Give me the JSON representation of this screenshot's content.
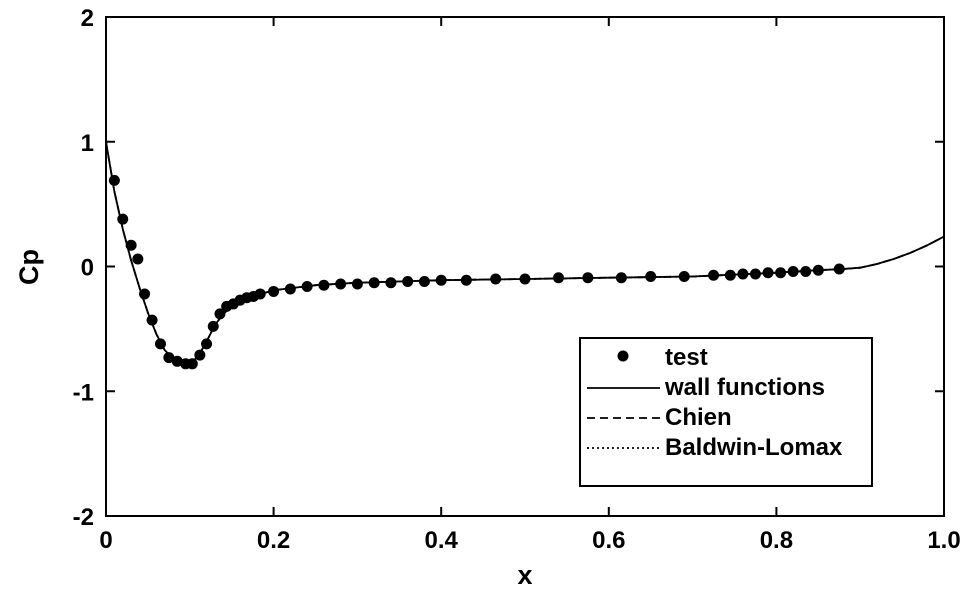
{
  "chart_data": {
    "type": "line",
    "title": "",
    "xlabel": "x",
    "ylabel": "Cp",
    "xlim": [
      0,
      1.0
    ],
    "ylim": [
      -2,
      2
    ],
    "x_ticks": [
      0,
      0.2,
      0.4,
      0.6,
      0.8,
      1.0
    ],
    "x_tick_labels": [
      "0",
      "0.2",
      "0.4",
      "0.6",
      "0.8",
      "1.0"
    ],
    "y_ticks": [
      -2,
      -1,
      0,
      1,
      2
    ],
    "y_tick_labels": [
      "-2",
      "-1",
      "0",
      "1",
      "2"
    ],
    "grid": false,
    "legend_position": "lower-right",
    "series": [
      {
        "name": "test",
        "style": "markers",
        "x": [
          0.01,
          0.02,
          0.03,
          0.038,
          0.046,
          0.055,
          0.065,
          0.075,
          0.085,
          0.095,
          0.103,
          0.112,
          0.12,
          0.128,
          0.136,
          0.144,
          0.152,
          0.16,
          0.168,
          0.176,
          0.184,
          0.2,
          0.22,
          0.24,
          0.26,
          0.28,
          0.3,
          0.32,
          0.34,
          0.36,
          0.38,
          0.4,
          0.43,
          0.465,
          0.5,
          0.54,
          0.575,
          0.615,
          0.65,
          0.69,
          0.725,
          0.745,
          0.76,
          0.775,
          0.79,
          0.805,
          0.82,
          0.835,
          0.85,
          0.875
        ],
        "y": [
          0.69,
          0.38,
          0.17,
          0.06,
          -0.22,
          -0.43,
          -0.62,
          -0.73,
          -0.76,
          -0.78,
          -0.78,
          -0.71,
          -0.62,
          -0.48,
          -0.38,
          -0.32,
          -0.3,
          -0.27,
          -0.25,
          -0.24,
          -0.22,
          -0.2,
          -0.18,
          -0.16,
          -0.15,
          -0.14,
          -0.14,
          -0.13,
          -0.13,
          -0.12,
          -0.12,
          -0.11,
          -0.11,
          -0.1,
          -0.1,
          -0.09,
          -0.09,
          -0.09,
          -0.08,
          -0.08,
          -0.07,
          -0.07,
          -0.06,
          -0.06,
          -0.05,
          -0.05,
          -0.04,
          -0.04,
          -0.03,
          -0.02
        ],
        "color": "#000000"
      },
      {
        "name": "wall functions",
        "style": "solid",
        "x": [
          0,
          0.01,
          0.02,
          0.03,
          0.04,
          0.05,
          0.06,
          0.07,
          0.08,
          0.09,
          0.1,
          0.11,
          0.12,
          0.13,
          0.14,
          0.15,
          0.16,
          0.18,
          0.2,
          0.25,
          0.3,
          0.4,
          0.5,
          0.6,
          0.7,
          0.8,
          0.85,
          0.88,
          0.9,
          0.92,
          0.94,
          0.96,
          0.98,
          1.0
        ],
        "y": [
          1.0,
          0.6,
          0.3,
          0.05,
          -0.17,
          -0.37,
          -0.54,
          -0.67,
          -0.74,
          -0.77,
          -0.78,
          -0.72,
          -0.6,
          -0.47,
          -0.38,
          -0.32,
          -0.28,
          -0.23,
          -0.19,
          -0.15,
          -0.13,
          -0.11,
          -0.1,
          -0.09,
          -0.08,
          -0.05,
          -0.03,
          -0.02,
          -0.01,
          0.02,
          0.06,
          0.11,
          0.17,
          0.24
        ],
        "color": "#000000"
      },
      {
        "name": "Chien",
        "style": "dashed",
        "x": [
          0,
          0.01,
          0.02,
          0.03,
          0.04,
          0.05,
          0.06,
          0.07,
          0.08,
          0.09,
          0.1,
          0.11,
          0.12,
          0.13,
          0.14,
          0.15,
          0.16,
          0.18,
          0.2,
          0.25,
          0.3,
          0.4,
          0.5,
          0.6,
          0.7,
          0.8,
          0.85,
          0.88,
          0.9,
          0.92,
          0.94,
          0.96,
          0.98,
          1.0
        ],
        "y": [
          1.0,
          0.6,
          0.3,
          0.05,
          -0.17,
          -0.37,
          -0.54,
          -0.67,
          -0.74,
          -0.77,
          -0.78,
          -0.72,
          -0.6,
          -0.47,
          -0.38,
          -0.32,
          -0.28,
          -0.23,
          -0.19,
          -0.15,
          -0.13,
          -0.11,
          -0.1,
          -0.09,
          -0.08,
          -0.05,
          -0.03,
          -0.02,
          -0.01,
          0.02,
          0.06,
          0.11,
          0.17,
          0.24
        ],
        "color": "#000000"
      },
      {
        "name": "Baldwin-Lomax",
        "style": "dotted",
        "x": [
          0,
          0.01,
          0.02,
          0.03,
          0.04,
          0.05,
          0.06,
          0.07,
          0.08,
          0.09,
          0.1,
          0.11,
          0.12,
          0.13,
          0.14,
          0.15,
          0.16,
          0.18,
          0.2,
          0.25,
          0.3,
          0.4,
          0.5,
          0.6,
          0.7,
          0.8,
          0.85,
          0.88,
          0.9,
          0.92,
          0.94,
          0.96,
          0.98,
          1.0
        ],
        "y": [
          1.0,
          0.6,
          0.3,
          0.05,
          -0.17,
          -0.37,
          -0.54,
          -0.67,
          -0.74,
          -0.77,
          -0.78,
          -0.72,
          -0.6,
          -0.47,
          -0.38,
          -0.32,
          -0.28,
          -0.23,
          -0.19,
          -0.15,
          -0.13,
          -0.11,
          -0.1,
          -0.09,
          -0.08,
          -0.05,
          -0.03,
          -0.02,
          -0.01,
          0.02,
          0.06,
          0.11,
          0.17,
          0.24
        ],
        "color": "#000000"
      }
    ]
  },
  "legend": {
    "items": [
      {
        "label": "test",
        "style": "markers"
      },
      {
        "label": "wall functions",
        "style": "solid"
      },
      {
        "label": "Chien",
        "style": "dashed"
      },
      {
        "label": "Baldwin-Lomax",
        "style": "dotted"
      }
    ]
  }
}
